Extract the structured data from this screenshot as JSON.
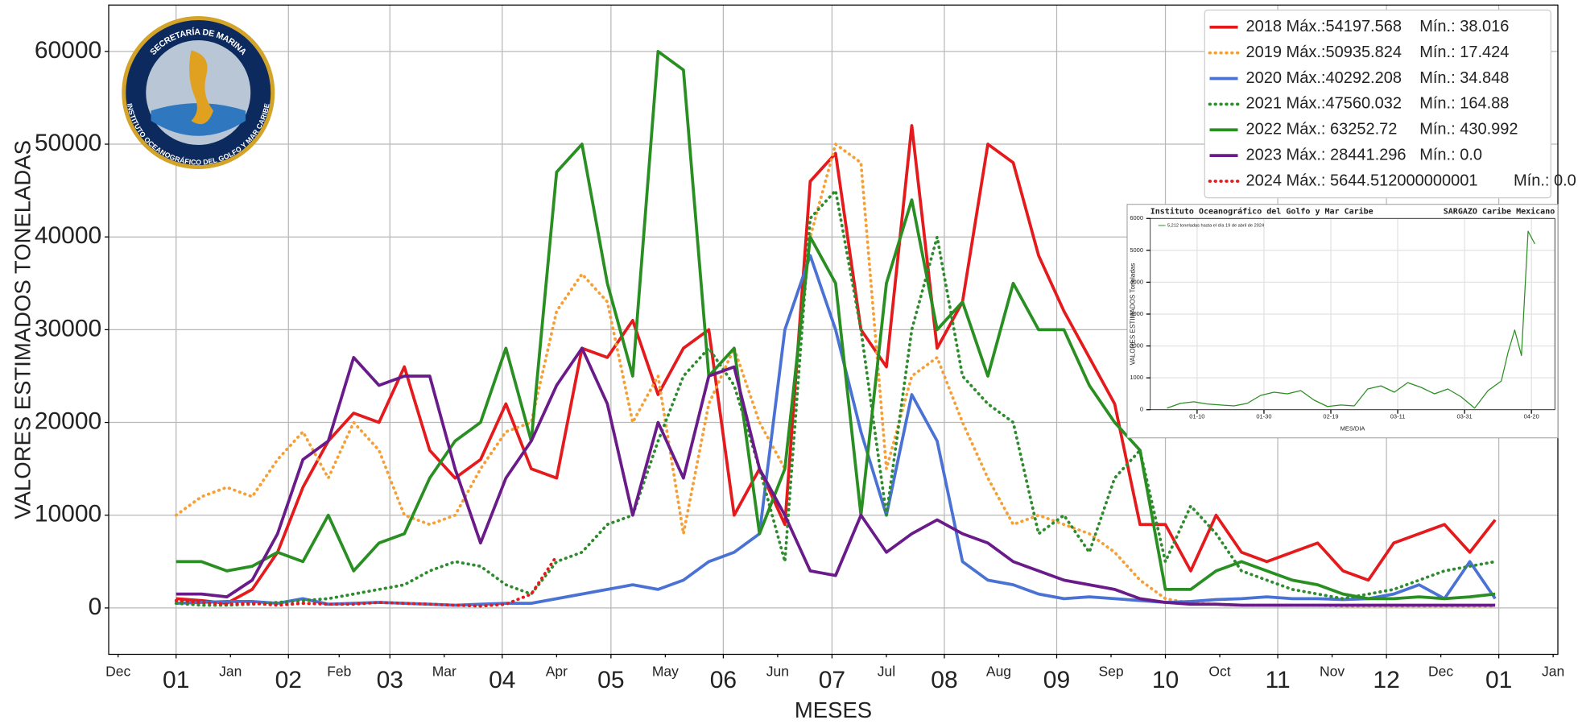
{
  "logo": {
    "top": "SECRETARÍA DE MARINA",
    "ring": "INSTITUTO OCEANOGRÁFICO DEL GOLFO Y MAR CARIBE"
  },
  "chart_data": [
    {
      "type": "line",
      "xlabel": "MESES",
      "ylabel": "VALORES ESTIMADOS TONELADAS",
      "x": [
        0,
        7,
        14,
        21,
        28,
        35,
        42,
        49,
        56,
        63,
        70,
        77,
        84,
        91,
        98,
        105,
        112,
        119,
        126,
        133,
        140,
        147,
        154,
        161,
        168,
        175,
        182,
        189,
        196,
        203,
        210,
        217,
        224,
        231,
        238,
        245,
        252,
        259,
        266,
        273,
        280,
        287,
        294,
        301,
        308,
        315,
        322,
        329,
        336,
        343,
        350,
        357,
        364
      ],
      "xlim": [
        -18.6,
        381.3
      ],
      "ylim": [
        -5000,
        65000
      ],
      "yticks": [
        0,
        10000,
        20000,
        30000,
        40000,
        50000,
        60000
      ],
      "xticks": [
        {
          "value": 0,
          "label": "01"
        },
        {
          "value": 31,
          "label": "02"
        },
        {
          "value": 59,
          "label": "03"
        },
        {
          "value": 90,
          "label": "04"
        },
        {
          "value": 120,
          "label": "05"
        },
        {
          "value": 151,
          "label": "06"
        },
        {
          "value": 181,
          "label": "07"
        },
        {
          "value": 212,
          "label": "08"
        },
        {
          "value": 243,
          "label": "09"
        },
        {
          "value": 273,
          "label": "10"
        },
        {
          "value": 304,
          "label": "11"
        },
        {
          "value": 334,
          "label": "12"
        },
        {
          "value": 365,
          "label": "01"
        }
      ],
      "xticks_minor": [
        {
          "value": -16,
          "label": "Dec"
        },
        {
          "value": 15,
          "label": "Jan"
        },
        {
          "value": 45,
          "label": "Feb"
        },
        {
          "value": 74,
          "label": "Mar"
        },
        {
          "value": 105,
          "label": "Apr"
        },
        {
          "value": 135,
          "label": "May"
        },
        {
          "value": 166,
          "label": "Jun"
        },
        {
          "value": 196,
          "label": "Jul"
        },
        {
          "value": 227,
          "label": "Aug"
        },
        {
          "value": 258,
          "label": "Sep"
        },
        {
          "value": 288,
          "label": "Oct"
        },
        {
          "value": 319,
          "label": "Nov"
        },
        {
          "value": 349,
          "label": "Dec"
        },
        {
          "value": 380,
          "label": "Jan"
        }
      ],
      "grid": true,
      "legend": "upper right",
      "series": [
        {
          "name": "2018 Máx.:54197.568    Mín.: 38.016",
          "color": "#e41a1c",
          "linestyle": "solid",
          "values": [
            1000,
            800,
            500,
            2000,
            6000,
            13000,
            18000,
            21000,
            20000,
            26000,
            17000,
            14000,
            16000,
            22000,
            15000,
            14000,
            28000,
            27000,
            31000,
            23000,
            28000,
            30000,
            10000,
            15000,
            9000,
            46000,
            49000,
            30000,
            26000,
            52000,
            28000,
            33000,
            50000,
            48000,
            38000,
            32000,
            27000,
            22000,
            9000,
            9000,
            4000,
            10000,
            6000,
            5000,
            6000,
            7000,
            4000,
            3000,
            7000,
            8000,
            9000,
            6000,
            9500
          ]
        },
        {
          "name": "2019 Máx.:50935.824    Mín.: 17.424",
          "color": "#f5a036",
          "linestyle": "dotted",
          "values": [
            10000,
            12000,
            13000,
            12000,
            16000,
            19000,
            14000,
            20000,
            17000,
            10000,
            9000,
            10000,
            15000,
            19000,
            20000,
            32000,
            36000,
            33000,
            20000,
            25000,
            8000,
            22000,
            28000,
            20000,
            15000,
            40000,
            50000,
            48000,
            15000,
            25000,
            27000,
            20000,
            14000,
            9000,
            10000,
            9000,
            8000,
            6000,
            3000,
            1000,
            500,
            400,
            300,
            300,
            300,
            300,
            200,
            200,
            200,
            200,
            200,
            200,
            200
          ]
        },
        {
          "name": "2020 Máx.:40292.208    Mín.: 34.848",
          "color": "#4a72d4",
          "linestyle": "solid",
          "values": [
            500,
            600,
            700,
            700,
            500,
            1000,
            400,
            500,
            600,
            500,
            400,
            300,
            400,
            500,
            500,
            1000,
            1500,
            2000,
            2500,
            2000,
            3000,
            5000,
            6000,
            8000,
            30000,
            38000,
            30000,
            19000,
            10000,
            23000,
            18000,
            5000,
            3000,
            2500,
            1500,
            1000,
            1200,
            1000,
            800,
            600,
            700,
            900,
            1000,
            1200,
            1000,
            1000,
            900,
            1000,
            1500,
            2500,
            1000,
            5000,
            1000
          ]
        },
        {
          "name": "2021 Máx.:47560.032    Mín.: 164.88",
          "color": "#2e8b2e",
          "linestyle": "dotted",
          "values": [
            500,
            300,
            300,
            400,
            600,
            800,
            1000,
            1500,
            2000,
            2500,
            4000,
            5000,
            4500,
            2500,
            1500,
            5000,
            6000,
            9000,
            10000,
            18000,
            25000,
            28000,
            24000,
            15000,
            5000,
            42000,
            45000,
            30000,
            10000,
            30000,
            40000,
            25000,
            22000,
            20000,
            8000,
            10000,
            6000,
            14000,
            17000,
            5000,
            11000,
            8000,
            4000,
            3000,
            2000,
            1500,
            1000,
            1500,
            2000,
            3000,
            4000,
            4500,
            5000
          ]
        },
        {
          "name": "2022 Máx.: 63252.72     Mín.: 430.992",
          "color": "#2a8f22",
          "linestyle": "solid",
          "values": [
            5000,
            5000,
            4000,
            4500,
            6000,
            5000,
            10000,
            4000,
            7000,
            8000,
            14000,
            18000,
            20000,
            28000,
            18000,
            47000,
            50000,
            35000,
            25000,
            60000,
            58000,
            25000,
            28000,
            8000,
            15000,
            40000,
            35000,
            10000,
            35000,
            44000,
            30000,
            33000,
            25000,
            35000,
            30000,
            30000,
            24000,
            20000,
            17000,
            2000,
            2000,
            4000,
            5000,
            4000,
            3000,
            2500,
            1500,
            1000,
            1000,
            1200,
            1000,
            1200,
            1500
          ]
        },
        {
          "name": "2023 Máx.: 28441.296   Mín.: 0.0",
          "color": "#6a1b8a",
          "linestyle": "solid",
          "values": [
            1500,
            1500,
            1200,
            3000,
            8000,
            16000,
            18000,
            27000,
            24000,
            25000,
            25000,
            15000,
            7000,
            14000,
            18000,
            24000,
            28000,
            22000,
            10000,
            20000,
            14000,
            25000,
            26000,
            15000,
            10000,
            4000,
            3500,
            10000,
            6000,
            8000,
            9500,
            8000,
            7000,
            5000,
            4000,
            3000,
            2500,
            2000,
            1000,
            600,
            400,
            400,
            300,
            300,
            300,
            300,
            300,
            300,
            300,
            300,
            300,
            300,
            300
          ]
        },
        {
          "name": "2024 Máx.: 5644.512000000001        Mín.: 0.0",
          "color": "#e41a1c",
          "linestyle": "dotted",
          "values": [
            800,
            600,
            400,
            500,
            300,
            500,
            400,
            400,
            600,
            500,
            400,
            300,
            200,
            400,
            1500,
            5600,
            null,
            null,
            null,
            null,
            null,
            null,
            null,
            null,
            null,
            null,
            null,
            null,
            null,
            null,
            null,
            null,
            null,
            null,
            null,
            null,
            null,
            null,
            null,
            null,
            null,
            null,
            null,
            null,
            null,
            null,
            null,
            null,
            null,
            null,
            null,
            null,
            null
          ]
        }
      ]
    },
    {
      "type": "line",
      "title": "Instituto Oceanográfico del Golfo y Mar Caribe",
      "subtitle": "SARGAZO Caribe Mexicano",
      "xlabel": "MES/DIA",
      "ylabel": "VALORES ESTIMADOS Toneladas",
      "x": [
        1,
        5,
        9,
        13,
        17,
        21,
        25,
        29,
        33,
        37,
        41,
        45,
        49,
        53,
        57,
        61,
        65,
        69,
        73,
        77,
        81,
        85,
        89,
        93,
        97,
        101,
        103,
        105,
        107,
        109,
        111
      ],
      "xlim": [
        -4,
        117
      ],
      "ylim": [
        0,
        6000
      ],
      "yticks": [
        0,
        1000,
        2000,
        3000,
        4000,
        5000,
        6000
      ],
      "xticks": [
        {
          "value": 10,
          "label": "01-10"
        },
        {
          "value": 30,
          "label": "01-30"
        },
        {
          "value": 50,
          "label": "02-19"
        },
        {
          "value": 70,
          "label": "03-11"
        },
        {
          "value": 90,
          "label": "03-31"
        },
        {
          "value": 110,
          "label": "04-20"
        }
      ],
      "grid": true,
      "legend": "upper left",
      "series": [
        {
          "name": "5,212 toneladas hasta el día 19 de abril de 2024",
          "color": "#2a8f22",
          "linestyle": "solid",
          "values": [
            50,
            200,
            250,
            180,
            150,
            120,
            200,
            450,
            550,
            500,
            600,
            300,
            100,
            150,
            120,
            650,
            750,
            550,
            850,
            700,
            500,
            650,
            400,
            50,
            600,
            900,
            1800,
            2500,
            1700,
            5600,
            5200
          ]
        }
      ]
    }
  ]
}
